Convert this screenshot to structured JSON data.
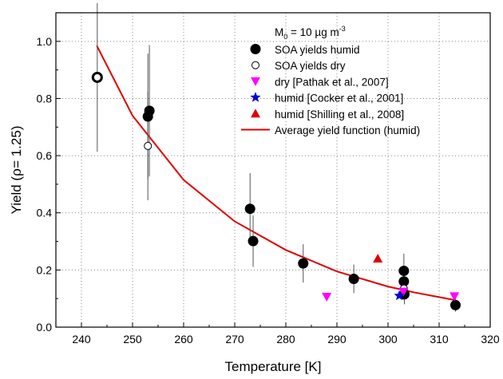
{
  "chart_data": {
    "type": "scatter",
    "xlabel": "Temperature [K]",
    "ylabel_parts": [
      "Yield (",
      "ρ",
      "= 1.25)"
    ],
    "xlim": [
      235,
      320
    ],
    "ylim": [
      0.0,
      1.1
    ],
    "x_ticks": [
      240,
      250,
      260,
      270,
      280,
      290,
      300,
      310,
      320
    ],
    "y_ticks": [
      0.0,
      0.2,
      0.4,
      0.6,
      0.8,
      1.0
    ],
    "y_tick_labels": [
      "0.0",
      "0.2",
      "0.4",
      "0.6",
      "0.8",
      "1.0"
    ],
    "grid": "dotted",
    "legend_position": "top-right",
    "legend_header": {
      "main": "M",
      "sub": "0",
      "rest": " = 10 µg m",
      "sup": "-3"
    },
    "colors": {
      "curve": "#e00000",
      "pathak": "#ff00ff",
      "cocker": "#0000dd",
      "shilling": "#e00000",
      "points": "#000000"
    },
    "series": [
      {
        "name": "SOA yields humid",
        "marker": "filled-circle",
        "points": [
          {
            "x": 253,
            "y": 0.737,
            "err": 0.22
          },
          {
            "x": 253.3,
            "y": 0.757,
            "err": 0.23
          },
          {
            "x": 273,
            "y": 0.414,
            "err": 0.125
          },
          {
            "x": 273.6,
            "y": 0.301,
            "err": 0.09
          },
          {
            "x": 283.4,
            "y": 0.223,
            "err": 0.067
          },
          {
            "x": 293.3,
            "y": 0.169,
            "err": 0.05
          },
          {
            "x": 303.1,
            "y": 0.197,
            "err": 0.06
          },
          {
            "x": 303.1,
            "y": 0.16,
            "err": 0.05
          },
          {
            "x": 303.2,
            "y": 0.115,
            "err": 0.035
          },
          {
            "x": 313.2,
            "y": 0.077,
            "err": 0.023
          }
        ]
      },
      {
        "name": "SOA yields dry",
        "marker": "open-circle",
        "points": [
          {
            "x": 243.1,
            "y": 0.874,
            "err": 0.26,
            "bold": true
          },
          {
            "x": 253,
            "y": 0.634,
            "err": 0.19
          },
          {
            "x": 303.1,
            "y": 0.135,
            "err": 0.04
          }
        ]
      },
      {
        "name": "dry [Pathak et al., 2007]",
        "marker": "down-triangle",
        "points": [
          {
            "x": 288,
            "y": 0.106
          },
          {
            "x": 303,
            "y": 0.124
          },
          {
            "x": 313,
            "y": 0.108
          }
        ]
      },
      {
        "name": "humid [Cocker et al., 2001]",
        "marker": "star",
        "points": [
          {
            "x": 302.2,
            "y": 0.11
          }
        ]
      },
      {
        "name": "humid [Shilling et al., 2008]",
        "marker": "up-triangle",
        "points": [
          {
            "x": 298,
            "y": 0.24
          }
        ]
      },
      {
        "name": "Average yield function (humid)",
        "marker": "line",
        "x": [
          243,
          250,
          260,
          270,
          280,
          290,
          300,
          305,
          310,
          313
        ],
        "y": [
          0.985,
          0.74,
          0.515,
          0.37,
          0.27,
          0.195,
          0.142,
          0.122,
          0.105,
          0.095
        ]
      }
    ]
  }
}
